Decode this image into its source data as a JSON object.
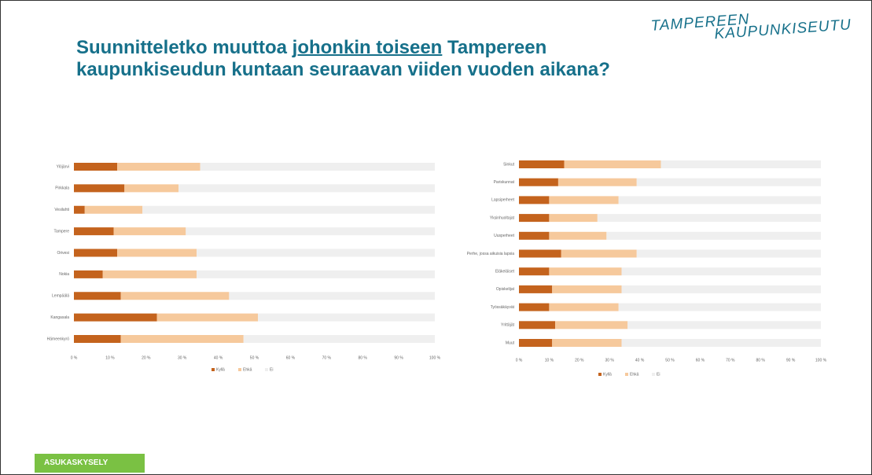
{
  "title_parts": [
    "Suunnitteletko muuttoa ",
    "johonkin toiseen",
    " Tampereen kaupunkiseudun kuntaan seuraavan viiden vuoden aikana?"
  ],
  "logo": [
    "TAMPEREEN",
    "KAUPUNKISEUTU"
  ],
  "footer": "ASUKASKYSELY",
  "chart_data": [
    {
      "type": "stacked_barh",
      "categories": [
        "Ylöjärvi",
        "Pirkkala",
        "Vesilahti",
        "Tampere",
        "Orivesi",
        "Nokia",
        "Lempäälä",
        "Kangasala",
        "Hämeenkyrö"
      ],
      "series": [
        {
          "name": "Kyllä",
          "color": "#c4631d",
          "values": [
            12,
            14,
            3,
            11,
            12,
            8,
            13,
            23,
            13
          ]
        },
        {
          "name": "Ehkä",
          "color": "#f6c99c",
          "values": [
            23,
            15,
            16,
            20,
            22,
            26,
            30,
            28,
            34
          ]
        },
        {
          "name": "Ei",
          "color": "#efefef",
          "values": [
            65,
            71,
            81,
            69,
            66,
            66,
            57,
            49,
            53
          ]
        }
      ],
      "xlim": [
        0,
        100
      ],
      "xticks": [
        {
          "value": 0,
          "label": "0 %"
        },
        {
          "value": 10,
          "label": "10 %"
        },
        {
          "value": 20,
          "label": "20 %"
        },
        {
          "value": 30,
          "label": "30 %"
        },
        {
          "value": 40,
          "label": "40 %"
        },
        {
          "value": 50,
          "label": "50 %"
        },
        {
          "value": 60,
          "label": "60 %"
        },
        {
          "value": 70,
          "label": "70 %"
        },
        {
          "value": 80,
          "label": "80 %"
        },
        {
          "value": 90,
          "label": "90 %"
        },
        {
          "value": 100,
          "label": "100 %"
        }
      ],
      "grid": false,
      "legend": "bottom"
    },
    {
      "type": "stacked_barh",
      "categories": [
        "Sinkut",
        "Pariskunnat",
        "Lapsiperheet",
        "Yksinhuoltajat",
        "Uusperheet",
        "Perhe, jossa aikuisia lapsia",
        "Eläkeläiset",
        "Opiskelijat",
        "Työssäkäyvät",
        "Yrittäjät",
        "Muut"
      ],
      "series": [
        {
          "name": "Kyllä",
          "color": "#c4631d",
          "values": [
            15,
            13,
            10,
            10,
            10,
            14,
            10,
            11,
            10,
            12,
            11
          ]
        },
        {
          "name": "Ehkä",
          "color": "#f6c99c",
          "values": [
            32,
            26,
            23,
            16,
            19,
            25,
            24,
            23,
            23,
            24,
            23
          ]
        },
        {
          "name": "Ei",
          "color": "#efefef",
          "values": [
            53,
            61,
            67,
            74,
            71,
            61,
            66,
            66,
            67,
            64,
            66
          ]
        }
      ],
      "xlim": [
        0,
        100
      ],
      "xticks": [
        {
          "value": 0,
          "label": "0 %"
        },
        {
          "value": 10,
          "label": "10 %"
        },
        {
          "value": 20,
          "label": "20 %"
        },
        {
          "value": 30,
          "label": "30 %"
        },
        {
          "value": 40,
          "label": "40 %"
        },
        {
          "value": 50,
          "label": "50 %"
        },
        {
          "value": 60,
          "label": "60 %"
        },
        {
          "value": 70,
          "label": "70 %"
        },
        {
          "value": 80,
          "label": "80 %"
        },
        {
          "value": 90,
          "label": "90 %"
        },
        {
          "value": 100,
          "label": "100 %"
        }
      ],
      "grid": false,
      "legend": "bottom"
    }
  ]
}
